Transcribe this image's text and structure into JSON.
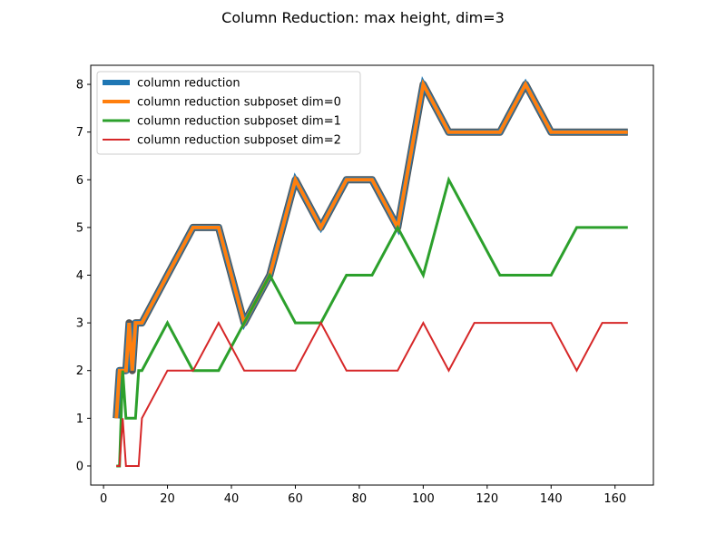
{
  "chart_data": {
    "type": "line",
    "title": "Column Reduction: max height, dim=3",
    "xlabel": "",
    "ylabel": "",
    "xlim": [
      -4.0,
      172.0
    ],
    "ylim": [
      -0.4,
      8.4
    ],
    "xticks": [
      0,
      20,
      40,
      60,
      80,
      100,
      120,
      140,
      160
    ],
    "yticks": [
      0,
      1,
      2,
      3,
      4,
      5,
      6,
      7,
      8
    ],
    "grid": false,
    "legend_position": "upper left",
    "series": [
      {
        "name": "column reduction",
        "color": "#1f77b4",
        "x": [
          4,
          5,
          6,
          7,
          8,
          9,
          10,
          11,
          12,
          20,
          28,
          36,
          44,
          52,
          60,
          68,
          76,
          84,
          92,
          100,
          108,
          116,
          124,
          132,
          140,
          148,
          156,
          164
        ],
        "y": [
          1,
          2,
          2,
          2,
          3,
          2,
          3,
          3,
          3,
          4,
          5,
          5,
          3,
          4,
          6,
          5,
          6,
          6,
          5,
          8,
          7,
          7,
          7,
          8,
          7,
          7,
          7,
          7
        ]
      },
      {
        "name": "column reduction subposet dim=0",
        "color": "#ff7f0e",
        "x": [
          4,
          5,
          6,
          7,
          8,
          9,
          10,
          11,
          12,
          20,
          28,
          36,
          44,
          52,
          60,
          68,
          76,
          84,
          92,
          100,
          108,
          116,
          124,
          132,
          140,
          148,
          156,
          164
        ],
        "y": [
          1,
          2,
          2,
          2,
          3,
          2,
          3,
          3,
          3,
          4,
          5,
          5,
          3,
          4,
          6,
          5,
          6,
          6,
          5,
          8,
          7,
          7,
          7,
          8,
          7,
          7,
          7,
          7
        ]
      },
      {
        "name": "column reduction subposet dim=1",
        "color": "#2ca02c",
        "x": [
          4,
          5,
          6,
          7,
          8,
          9,
          10,
          11,
          12,
          20,
          28,
          36,
          44,
          52,
          60,
          68,
          76,
          84,
          92,
          100,
          108,
          116,
          124,
          132,
          140,
          148,
          156,
          164
        ],
        "y": [
          0,
          0,
          2,
          1,
          1,
          1,
          1,
          2,
          2,
          3,
          2,
          2,
          3,
          4,
          3,
          3,
          4,
          4,
          5,
          4,
          6,
          5,
          4,
          4,
          4,
          5,
          5,
          5
        ]
      },
      {
        "name": "column reduction subposet dim=2",
        "color": "#d62728",
        "x": [
          4,
          5,
          6,
          7,
          8,
          9,
          10,
          11,
          12,
          20,
          28,
          36,
          44,
          52,
          60,
          68,
          76,
          84,
          92,
          100,
          108,
          116,
          124,
          132,
          140,
          148,
          156,
          164
        ],
        "y": [
          0,
          0,
          1,
          0,
          0,
          0,
          0,
          0,
          1,
          2,
          2,
          3,
          2,
          2,
          2,
          3,
          2,
          2,
          2,
          3,
          2,
          3,
          3,
          3,
          3,
          2,
          3,
          3
        ]
      }
    ]
  }
}
